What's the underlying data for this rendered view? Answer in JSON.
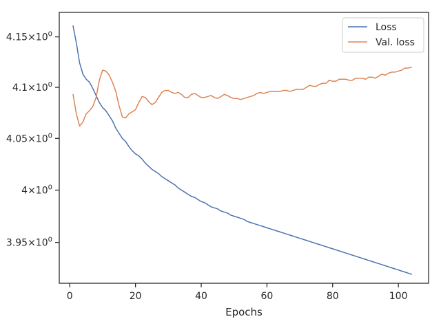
{
  "chart_data": {
    "type": "line",
    "title": "",
    "xlabel": "Epochs",
    "ylabel": "",
    "xlim": [
      -3.2,
      109.2
    ],
    "ylim": [
      3.9115,
      4.1745
    ],
    "yscale": "log",
    "grid": false,
    "legend_position": "top-right",
    "x_ticks": [
      0,
      20,
      40,
      60,
      80,
      100
    ],
    "x_tick_labels": [
      "0",
      "20",
      "40",
      "60",
      "80",
      "100"
    ],
    "y_ticks": [
      3.95,
      4.0,
      4.05,
      4.1,
      4.15
    ],
    "y_tick_labels": [
      {
        "base": "3.95",
        "sup": "0"
      },
      {
        "base": "4",
        "sup": "0"
      },
      {
        "base": "4.05",
        "sup": "0"
      },
      {
        "base": "4.1",
        "sup": "0"
      },
      {
        "base": "4.15",
        "sup": "0"
      }
    ],
    "series": [
      {
        "name": "Loss",
        "color": "#4c72b0",
        "x": [
          1,
          2,
          3,
          4,
          5,
          6,
          7,
          8,
          9,
          10,
          11,
          12,
          13,
          14,
          15,
          16,
          17,
          18,
          19,
          20,
          21,
          22,
          23,
          24,
          25,
          26,
          27,
          28,
          29,
          30,
          31,
          32,
          33,
          34,
          35,
          36,
          37,
          38,
          39,
          40,
          41,
          42,
          43,
          44,
          45,
          46,
          47,
          48,
          49,
          50,
          51,
          52,
          53,
          54,
          55,
          56,
          57,
          58,
          59,
          60,
          61,
          62,
          63,
          64,
          65,
          66,
          67,
          68,
          69,
          70,
          71,
          72,
          73,
          74,
          75,
          76,
          77,
          78,
          79,
          80,
          81,
          82,
          83,
          84,
          85,
          86,
          87,
          88,
          89,
          90,
          91,
          92,
          93,
          94,
          95,
          96,
          97,
          98,
          99,
          100,
          101,
          102,
          103,
          104
        ],
        "values": [
          4.161,
          4.144,
          4.124,
          4.113,
          4.108,
          4.105,
          4.099,
          4.092,
          4.085,
          4.08,
          4.077,
          4.072,
          4.067,
          4.06,
          4.055,
          4.05,
          4.047,
          4.042,
          4.038,
          4.035,
          4.033,
          4.03,
          4.026,
          4.023,
          4.02,
          4.018,
          4.016,
          4.013,
          4.011,
          4.009,
          4.007,
          4.005,
          4.002,
          4.0,
          3.998,
          3.996,
          3.994,
          3.993,
          3.991,
          3.989,
          3.988,
          3.986,
          3.984,
          3.983,
          3.982,
          3.98,
          3.979,
          3.978,
          3.976,
          3.975,
          3.974,
          3.973,
          3.972,
          3.97,
          3.969,
          3.968,
          3.967,
          3.966,
          3.965,
          3.964,
          3.963,
          3.962,
          3.961,
          3.96,
          3.959,
          3.958,
          3.957,
          3.956,
          3.955,
          3.954,
          3.953,
          3.952,
          3.951,
          3.95,
          3.949,
          3.948,
          3.947,
          3.946,
          3.945,
          3.944,
          3.943,
          3.942,
          3.941,
          3.94,
          3.939,
          3.938,
          3.937,
          3.936,
          3.935,
          3.934,
          3.933,
          3.932,
          3.931,
          3.93,
          3.929,
          3.928,
          3.927,
          3.926,
          3.925,
          3.924,
          3.923,
          3.922,
          3.921,
          3.92
        ]
      },
      {
        "name": "Val. loss",
        "color": "#dd8452",
        "x": [
          1,
          2,
          3,
          4,
          5,
          6,
          7,
          8,
          9,
          10,
          11,
          12,
          13,
          14,
          15,
          16,
          17,
          18,
          19,
          20,
          21,
          22,
          23,
          24,
          25,
          26,
          27,
          28,
          29,
          30,
          31,
          32,
          33,
          34,
          35,
          36,
          37,
          38,
          39,
          40,
          41,
          42,
          43,
          44,
          45,
          46,
          47,
          48,
          49,
          50,
          51,
          52,
          53,
          54,
          55,
          56,
          57,
          58,
          59,
          60,
          61,
          62,
          63,
          64,
          65,
          66,
          67,
          68,
          69,
          70,
          71,
          72,
          73,
          74,
          75,
          76,
          77,
          78,
          79,
          80,
          81,
          82,
          83,
          84,
          85,
          86,
          87,
          88,
          89,
          90,
          91,
          92,
          93,
          94,
          95,
          96,
          97,
          98,
          99,
          100,
          101,
          102,
          103,
          104
        ],
        "values": [
          4.093,
          4.074,
          4.062,
          4.066,
          4.074,
          4.077,
          4.081,
          4.09,
          4.107,
          4.117,
          4.116,
          4.112,
          4.105,
          4.096,
          4.082,
          4.071,
          4.07,
          4.074,
          4.076,
          4.078,
          4.085,
          4.091,
          4.09,
          4.086,
          4.083,
          4.085,
          4.09,
          4.095,
          4.097,
          4.097,
          4.095,
          4.094,
          4.095,
          4.093,
          4.09,
          4.09,
          4.093,
          4.094,
          4.092,
          4.09,
          4.09,
          4.091,
          4.092,
          4.09,
          4.089,
          4.091,
          4.093,
          4.092,
          4.09,
          4.089,
          4.089,
          4.088,
          4.089,
          4.09,
          4.091,
          4.092,
          4.094,
          4.095,
          4.094,
          4.095,
          4.096,
          4.096,
          4.096,
          4.096,
          4.097,
          4.097,
          4.096,
          4.097,
          4.098,
          4.098,
          4.098,
          4.1,
          4.102,
          4.101,
          4.101,
          4.103,
          4.104,
          4.104,
          4.107,
          4.106,
          4.106,
          4.108,
          4.108,
          4.108,
          4.107,
          4.107,
          4.109,
          4.109,
          4.109,
          4.108,
          4.11,
          4.11,
          4.109,
          4.111,
          4.113,
          4.112,
          4.114,
          4.115,
          4.115,
          4.116,
          4.117,
          4.119,
          4.119,
          4.12
        ]
      }
    ]
  }
}
